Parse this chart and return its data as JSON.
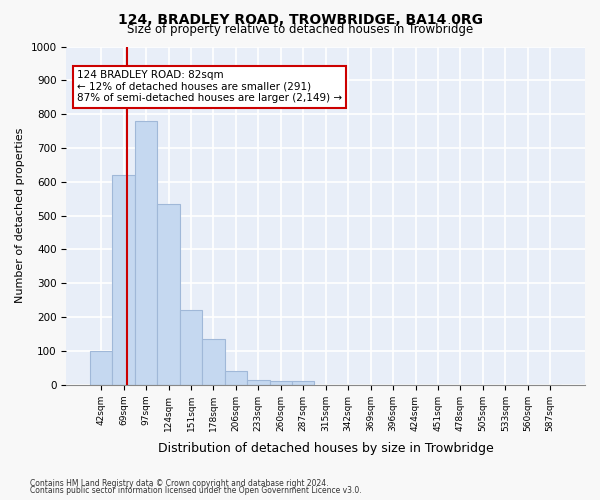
{
  "title": "124, BRADLEY ROAD, TROWBRIDGE, BA14 0RG",
  "subtitle": "Size of property relative to detached houses in Trowbridge",
  "xlabel": "Distribution of detached houses by size in Trowbridge",
  "ylabel": "Number of detached properties",
  "bar_color": "#c5d8f0",
  "bar_edgecolor": "#a0b8d8",
  "background_color": "#e8eef8",
  "grid_color": "#ffffff",
  "bin_labels": [
    "42sqm",
    "69sqm",
    "97sqm",
    "124sqm",
    "151sqm",
    "178sqm",
    "206sqm",
    "233sqm",
    "260sqm",
    "287sqm",
    "315sqm",
    "342sqm",
    "369sqm",
    "396sqm",
    "424sqm",
    "451sqm",
    "478sqm",
    "505sqm",
    "533sqm",
    "560sqm",
    "587sqm"
  ],
  "bar_heights": [
    100,
    620,
    780,
    535,
    220,
    135,
    40,
    15,
    10,
    10,
    0,
    0,
    0,
    0,
    0,
    0,
    0,
    0,
    0,
    0,
    0
  ],
  "property_value": 82,
  "property_label": "124 BRADLEY ROAD: 82sqm",
  "annotation_line1": "← 12% of detached houses are smaller (291)",
  "annotation_line2": "87% of semi-detached houses are larger (2,149) →",
  "vline_x_index": 1.15,
  "ylim": [
    0,
    1000
  ],
  "yticks": [
    0,
    100,
    200,
    300,
    400,
    500,
    600,
    700,
    800,
    900,
    1000
  ],
  "footnote1": "Contains HM Land Registry data © Crown copyright and database right 2024.",
  "footnote2": "Contains public sector information licensed under the Open Government Licence v3.0.",
  "annotation_box_color": "#ffffff",
  "annotation_box_edgecolor": "#cc0000",
  "vline_color": "#cc0000"
}
